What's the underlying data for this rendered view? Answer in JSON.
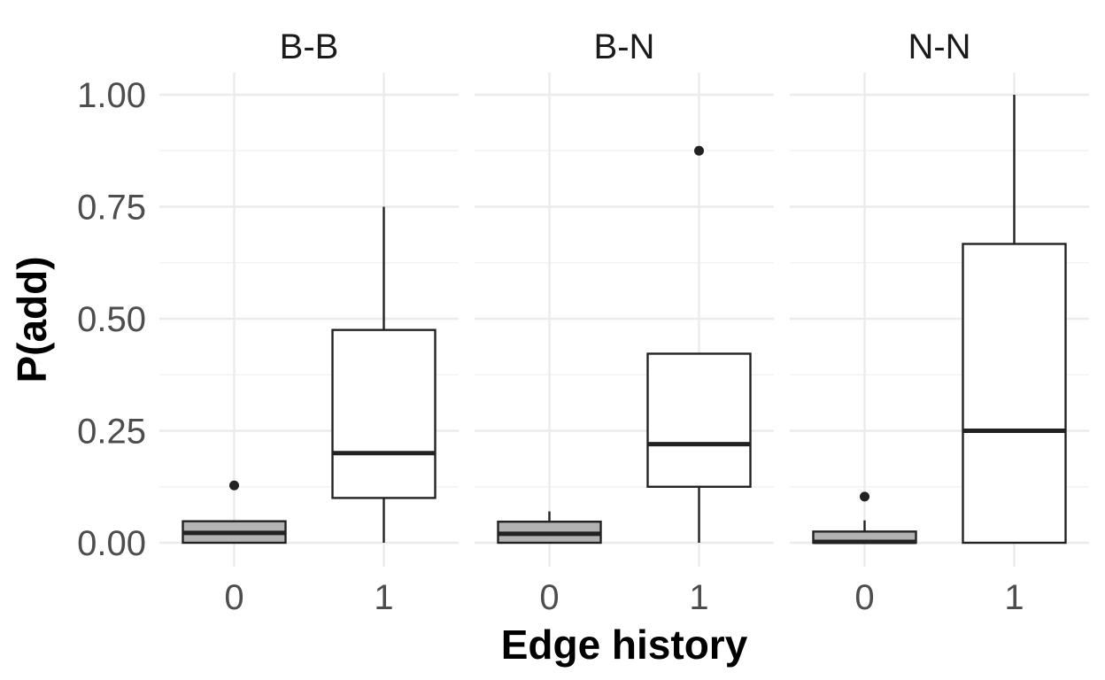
{
  "chart_data": {
    "type": "boxplot",
    "xlabel": "Edge history",
    "ylabel": "P(add)",
    "ylim": [
      -0.04,
      1.06
    ],
    "yticks": [
      0,
      0.25,
      0.5,
      0.75,
      1.0
    ],
    "ytick_labels": [
      "0.00",
      "0.25",
      "0.50",
      "0.75",
      "1.00"
    ],
    "categories": [
      "0",
      "1"
    ],
    "grid": true,
    "legend": "none",
    "colors": {
      "0": "#b3b3b3",
      "1": "#ffffff"
    },
    "facets": [
      {
        "title": "B-B",
        "boxes": [
          {
            "category": "0",
            "whisker_low": 0.0,
            "q1": 0.0,
            "median": 0.022,
            "q3": 0.048,
            "whisker_high": 0.048,
            "outliers": [
              0.128
            ]
          },
          {
            "category": "1",
            "whisker_low": 0.0,
            "q1": 0.1,
            "median": 0.2,
            "q3": 0.475,
            "whisker_high": 0.75,
            "outliers": []
          }
        ]
      },
      {
        "title": "B-N",
        "boxes": [
          {
            "category": "0",
            "whisker_low": 0.0,
            "q1": 0.0,
            "median": 0.02,
            "q3": 0.047,
            "whisker_high": 0.07,
            "outliers": []
          },
          {
            "category": "1",
            "whisker_low": 0.0,
            "q1": 0.125,
            "median": 0.22,
            "q3": 0.422,
            "whisker_high": 0.422,
            "outliers": [
              0.875
            ]
          }
        ]
      },
      {
        "title": "N-N",
        "boxes": [
          {
            "category": "0",
            "whisker_low": 0.0,
            "q1": 0.0,
            "median": 0.002,
            "q3": 0.025,
            "whisker_high": 0.05,
            "outliers": [
              0.103
            ]
          },
          {
            "category": "1",
            "whisker_low": 0.0,
            "q1": 0.0,
            "median": 0.25,
            "q3": 0.667,
            "whisker_high": 1.0,
            "outliers": []
          }
        ]
      }
    ]
  }
}
